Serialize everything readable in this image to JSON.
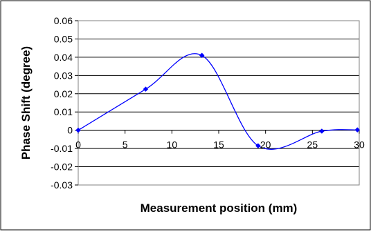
{
  "chart_data": {
    "type": "line",
    "title": "",
    "xlabel": "Measurement position (mm)",
    "ylabel": "Phase Shift (degree)",
    "xlim": [
      0,
      30
    ],
    "ylim": [
      -0.03,
      0.06
    ],
    "x_ticks": [
      "0",
      "5",
      "10",
      "15",
      "20",
      "25",
      "30"
    ],
    "y_ticks": [
      "0.06",
      "0.05",
      "0.04",
      "0.03",
      "0.02",
      "0.01",
      "0",
      "-0.01",
      "-0.02",
      "-0.03"
    ],
    "grid": "horizontal",
    "legend": "none",
    "smooth": true,
    "series": [
      {
        "x": [
          0,
          7.2,
          13.2,
          19.2,
          26,
          29.8
        ],
        "y": [
          0,
          0.0225,
          0.041,
          -0.0085,
          -0.0005,
          0.0002
        ],
        "color": "#0000ff",
        "marker": "diamond"
      }
    ]
  }
}
